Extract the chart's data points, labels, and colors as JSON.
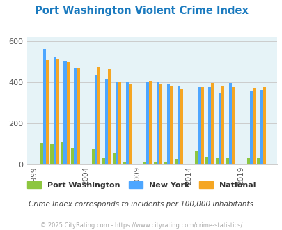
{
  "title": "Port Washington Violent Crime Index",
  "title_color": "#1a7abf",
  "subtitle": "Crime Index corresponds to incidents per 100,000 inhabitants",
  "subtitle_color": "#444444",
  "footer": "© 2025 CityRating.com - https://www.cityrating.com/crime-statistics/",
  "footer_color": "#aaaaaa",
  "years": [
    2000,
    2001,
    2002,
    2003,
    2005,
    2006,
    2007,
    2008,
    2010,
    2011,
    2012,
    2013,
    2015,
    2016,
    2017,
    2018,
    2020,
    2021
  ],
  "x_ticks": [
    1999,
    2004,
    2009,
    2014,
    2019
  ],
  "port_washington": [
    105,
    97,
    107,
    80,
    75,
    30,
    57,
    10,
    12,
    10,
    12,
    28,
    65,
    38,
    30,
    35,
    35,
    33
  ],
  "new_york": [
    558,
    520,
    502,
    468,
    437,
    412,
    400,
    403,
    400,
    400,
    388,
    380,
    375,
    375,
    350,
    397,
    355,
    362
  ],
  "national": [
    507,
    511,
    499,
    472,
    473,
    464,
    401,
    393,
    405,
    388,
    378,
    370,
    374,
    396,
    383,
    376,
    372,
    375
  ],
  "bar_width": 0.28,
  "ylim": [
    0,
    620
  ],
  "yticks": [
    0,
    200,
    400,
    600
  ],
  "plot_bg": "#e6f3f7",
  "fig_bg": "#ffffff",
  "color_pw": "#8dc63f",
  "color_ny": "#4da6ff",
  "color_nat": "#f5a623",
  "legend_label_pw": "Port Washington",
  "legend_label_ny": "New York",
  "legend_label_nat": "National",
  "grid_color": "#cccccc",
  "xlim_left": 1998.3,
  "xlim_right": 2022.5
}
